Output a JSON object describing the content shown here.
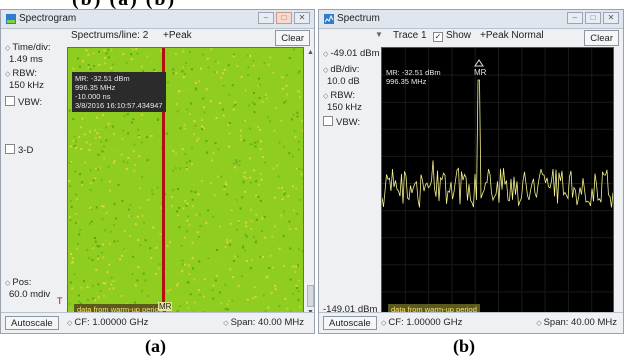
{
  "top_text": "(b) (a) (b)",
  "spectrogram": {
    "title": "Spectrogram",
    "side": {
      "time_div_label": "Time/div:",
      "time_div_value": "1.49 ms",
      "rbw_label": "RBW:",
      "rbw_value": "150 kHz",
      "vbw_label": "VBW:",
      "threed_label": "3-D",
      "pos_label": "Pos:",
      "pos_value": "60.0 mdiv",
      "pos_marker": "T"
    },
    "spectrums_line": "Spectrums/line: 2",
    "peak_label": "+Peak",
    "clear_label": "Clear",
    "marker_readout": [
      "MR: -32.51 dBm",
      "996.35 MHz",
      "-10.000 ns",
      "3/8/2016 16:10:57.434947"
    ],
    "warmup_label": "data from warm-up period",
    "marker_tag": "MR",
    "autoscale_label": "Autoscale",
    "cf_label": "CF: 1.00000 GHz",
    "span_label": "Span: 40.00 MHz",
    "colors": {
      "background": "#8fcd20",
      "marker_line": "#b01010"
    }
  },
  "spectrum": {
    "title": "Spectrum",
    "trace_label": "Trace 1",
    "show_label": "Show",
    "show_checked": true,
    "mode_label": "+Peak Normal",
    "clear_label": "Clear",
    "side": {
      "ref_value": "-49.01 dBm",
      "db_div_label": "dB/div:",
      "db_div_value": "10.0 dB",
      "rbw_label": "RBW:",
      "rbw_value": "150 kHz",
      "vbw_label": "VBW:",
      "bottom_value": "-149.01 dBm"
    },
    "marker_readout": [
      "MR: -32.51 dBm",
      "996.35 MHz"
    ],
    "marker_tag": "MR",
    "warmup_label": "data from warm-up period",
    "autoscale_label": "Autoscale",
    "cf_label": "CF: 1.00000 GHz",
    "span_label": "Span: 40.00 MHz",
    "colors": {
      "trace": "#f3f08a",
      "background": "#000000"
    }
  },
  "captions": [
    "(a)",
    "(b)"
  ]
}
